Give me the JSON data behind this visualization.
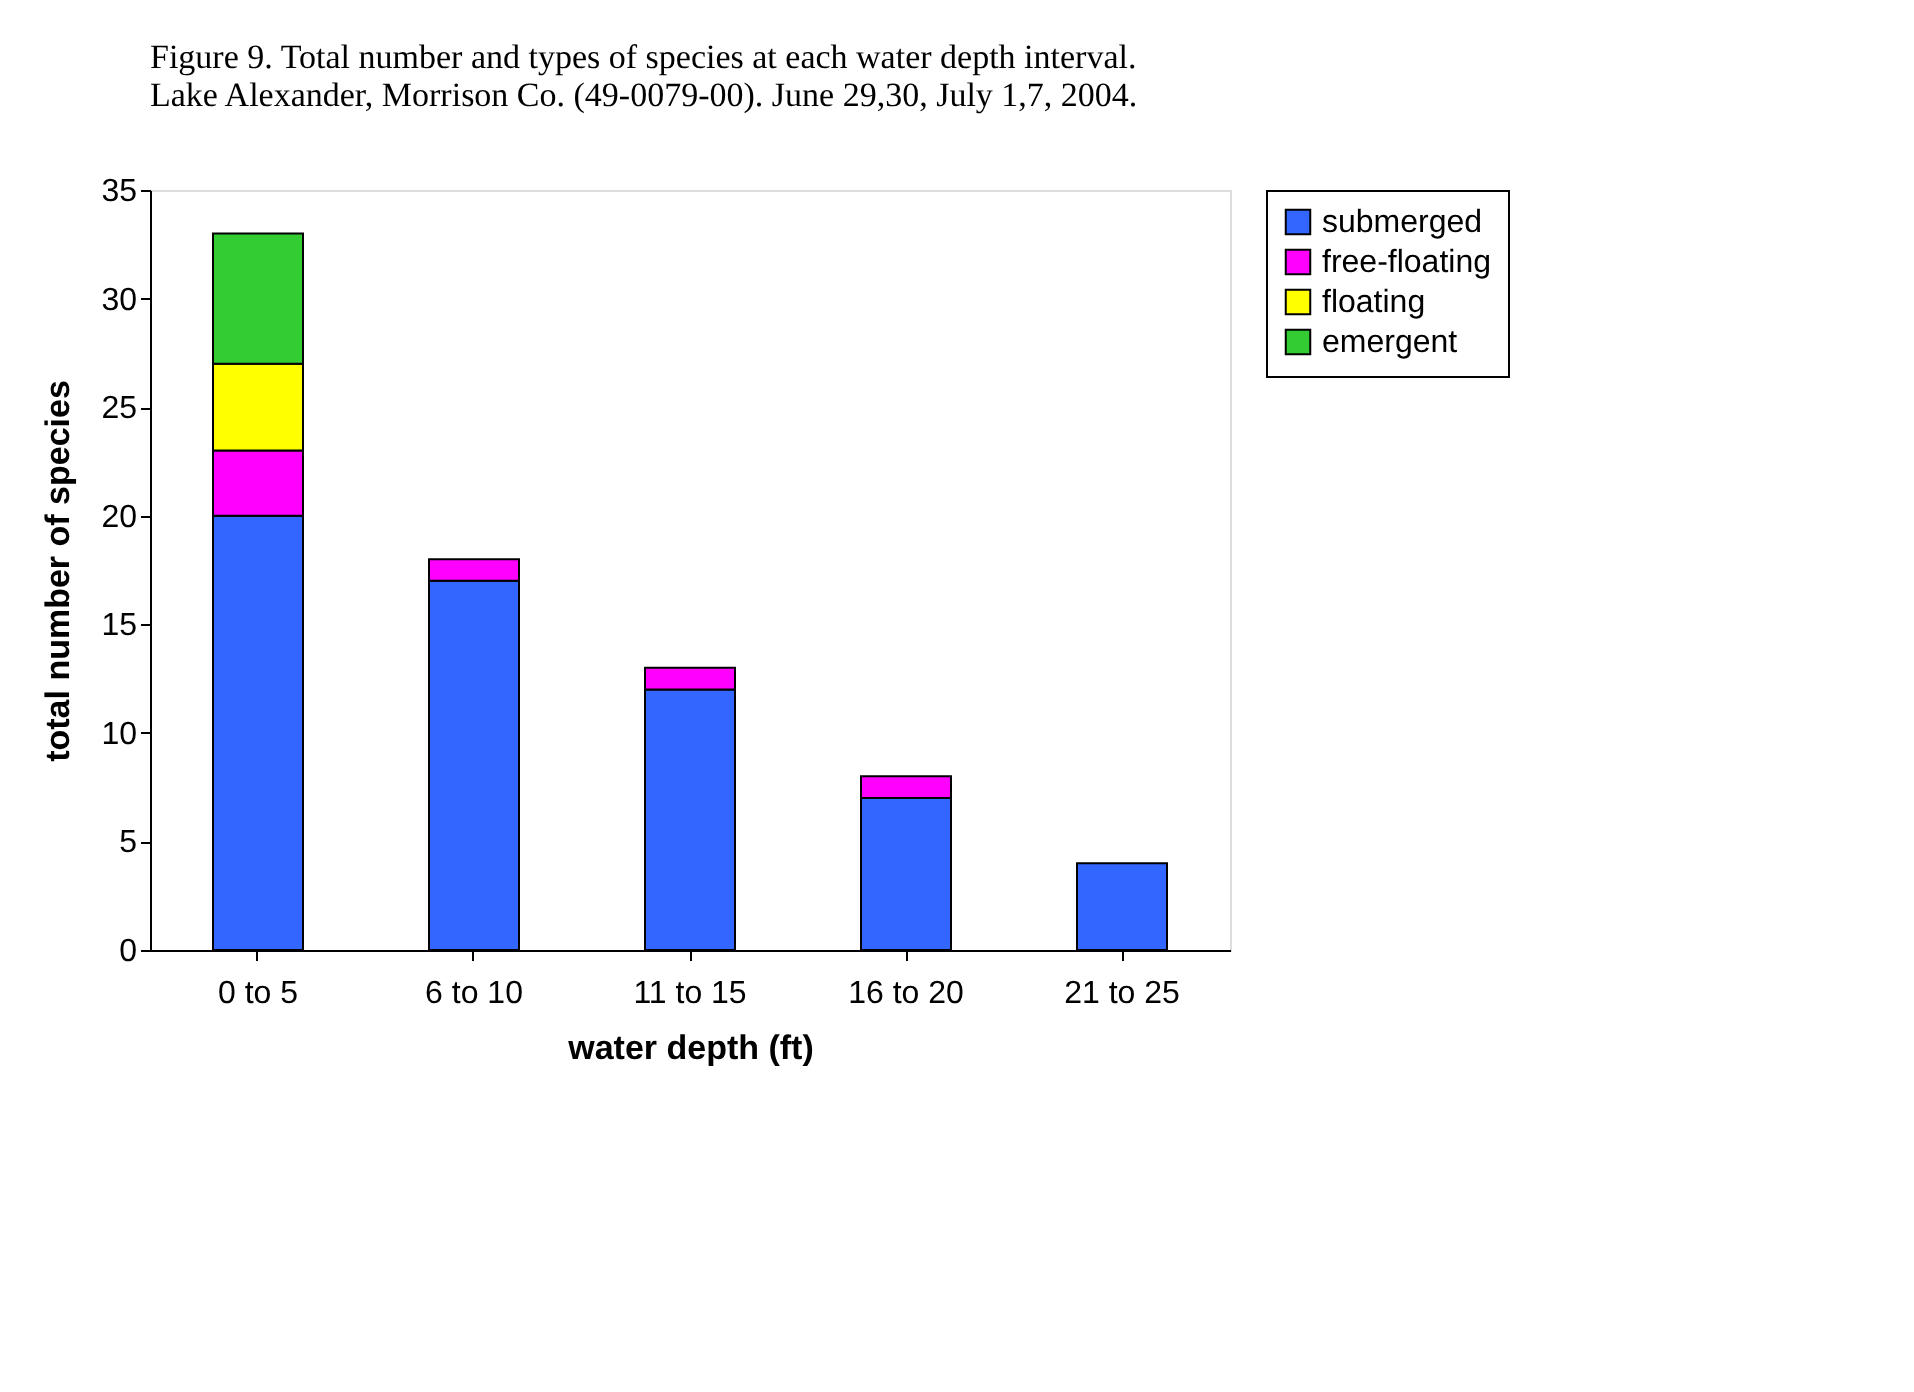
{
  "chart_data": {
    "type": "bar",
    "stacked": true,
    "title": [
      "Figure 9.  Total number and types of species at each water depth interval.",
      "Lake Alexander, Morrison Co. (49-0079-00). June 29,30, July 1,7, 2004."
    ],
    "xlabel": "water depth (ft)",
    "ylabel": "total number of species",
    "categories": [
      "0 to 5",
      "6 to 10",
      "11 to 15",
      "16 to 20",
      "21 to 25"
    ],
    "series": [
      {
        "name": "submerged",
        "color": "#3366ff",
        "values": [
          20,
          17,
          12,
          7,
          4
        ]
      },
      {
        "name": "free-floating",
        "color": "#ff00ff",
        "values": [
          3,
          1,
          1,
          1,
          0
        ]
      },
      {
        "name": "floating",
        "color": "#ffff00",
        "values": [
          4,
          0,
          0,
          0,
          0
        ]
      },
      {
        "name": "emergent",
        "color": "#33cc33",
        "values": [
          6,
          0,
          0,
          0,
          0
        ]
      }
    ],
    "ylim": [
      0,
      35
    ],
    "yticks": [
      0,
      5,
      10,
      15,
      20,
      25,
      30,
      35
    ],
    "grid": false,
    "legend": "right"
  }
}
